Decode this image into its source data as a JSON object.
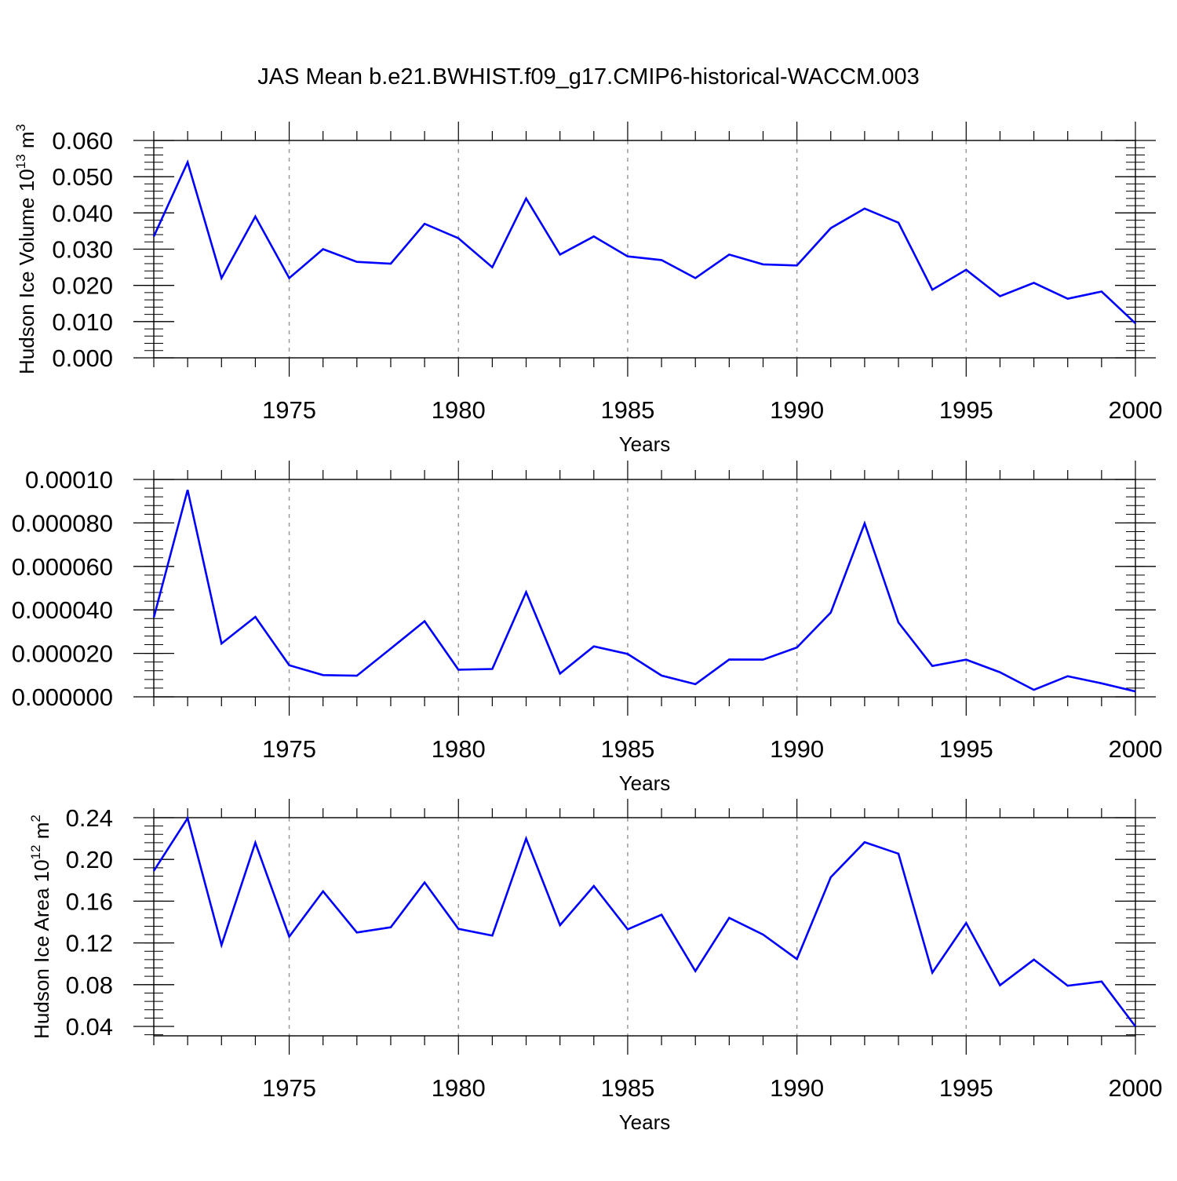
{
  "figure": {
    "title": "JAS Mean b.e21.BWHIST.f09_g17.CMIP6-historical-WACCM.003",
    "line_color": "#0000ff"
  },
  "chart_data": [
    {
      "type": "line",
      "xlabel": "Years",
      "ylabel": "Hudson Ice Volume 10",
      "ylabel_exp": "13",
      "ylabel_unit": " m",
      "ylabel_unit_exp": "3",
      "xlim": [
        1971,
        2000
      ],
      "ylim": [
        0.0,
        0.06
      ],
      "yticks": [
        0.0,
        0.01,
        0.02,
        0.03,
        0.04,
        0.05,
        0.06
      ],
      "ytick_labels": [
        "0.000",
        "0.010",
        "0.020",
        "0.030",
        "0.040",
        "0.050",
        "0.060"
      ],
      "xticks": [
        1975,
        1980,
        1985,
        1990,
        1995,
        2000
      ],
      "xtick_labels": [
        "1975",
        "1980",
        "1985",
        "1990",
        "1995",
        "2000"
      ],
      "grid": "vertical-dashed-at-major-x",
      "x": [
        1971,
        1972,
        1973,
        1974,
        1975,
        1976,
        1977,
        1978,
        1979,
        1980,
        1981,
        1982,
        1983,
        1984,
        1985,
        1986,
        1987,
        1988,
        1989,
        1990,
        1991,
        1992,
        1993,
        1994,
        1995,
        1996,
        1997,
        1998,
        1999,
        2000
      ],
      "values": [
        0.0335,
        0.054,
        0.022,
        0.039,
        0.022,
        0.03,
        0.0265,
        0.026,
        0.037,
        0.033,
        0.025,
        0.044,
        0.0285,
        0.0335,
        0.028,
        0.027,
        0.022,
        0.0285,
        0.0258,
        0.0255,
        0.0358,
        0.0412,
        0.0373,
        0.0188,
        0.0243,
        0.017,
        0.0207,
        0.0163,
        0.0183,
        0.0095
      ]
    },
    {
      "type": "line",
      "xlabel": "Years",
      "ylabel": "",
      "xlim": [
        1971,
        2000
      ],
      "ylim": [
        0.0,
        0.0001
      ],
      "yticks": [
        0.0,
        2e-05,
        4e-05,
        6e-05,
        8e-05,
        0.0001
      ],
      "ytick_labels": [
        "0.000000",
        "0.000020",
        "0.000040",
        "0.000060",
        "0.000080",
        "0.00010"
      ],
      "xticks": [
        1975,
        1980,
        1985,
        1990,
        1995,
        2000
      ],
      "xtick_labels": [
        "1975",
        "1980",
        "1985",
        "1990",
        "1995",
        "2000"
      ],
      "grid": "vertical-dashed-at-major-x",
      "x": [
        1971,
        1972,
        1973,
        1974,
        1975,
        1976,
        1977,
        1978,
        1979,
        1980,
        1981,
        1982,
        1983,
        1984,
        1985,
        1986,
        1987,
        1988,
        1989,
        1990,
        1991,
        1992,
        1993,
        1994,
        1995,
        1996,
        1997,
        1998,
        1999,
        2000
      ],
      "values": [
        3.65e-05,
        9.52e-05,
        2.45e-05,
        3.68e-05,
        1.45e-05,
        1e-05,
        9.7e-06,
        2.22e-05,
        3.48e-05,
        1.25e-05,
        1.28e-05,
        4.82e-05,
        1.07e-05,
        2.32e-05,
        1.97e-05,
        9.8e-06,
        5.8e-06,
        1.72e-05,
        1.71e-05,
        2.27e-05,
        3.88e-05,
        7.98e-05,
        3.42e-05,
        1.42e-05,
        1.71e-05,
        1.13e-05,
        3.2e-06,
        9.5e-06,
        6.2e-06,
        2.5e-06
      ]
    },
    {
      "type": "line",
      "xlabel": "Years",
      "ylabel": "Hudson Ice Area 10",
      "ylabel_exp": "12",
      "ylabel_unit": " m",
      "ylabel_unit_exp": "2",
      "xlim": [
        1971,
        2000
      ],
      "ylim": [
        0.031,
        0.24
      ],
      "yticks": [
        0.04,
        0.08,
        0.12,
        0.16,
        0.2,
        0.24
      ],
      "ytick_labels": [
        "0.04",
        "0.08",
        "0.12",
        "0.16",
        "0.20",
        "0.24"
      ],
      "xticks": [
        1975,
        1980,
        1985,
        1990,
        1995,
        2000
      ],
      "xtick_labels": [
        "1975",
        "1980",
        "1985",
        "1990",
        "1995",
        "2000"
      ],
      "grid": "vertical-dashed-at-major-x",
      "x": [
        1971,
        1972,
        1973,
        1974,
        1975,
        1976,
        1977,
        1978,
        1979,
        1980,
        1981,
        1982,
        1983,
        1984,
        1985,
        1986,
        1987,
        1988,
        1989,
        1990,
        1991,
        1992,
        1993,
        1994,
        1995,
        1996,
        1997,
        1998,
        1999,
        2000
      ],
      "values": [
        0.189,
        0.2395,
        0.118,
        0.216,
        0.126,
        0.1695,
        0.13,
        0.135,
        0.178,
        0.1335,
        0.127,
        0.22,
        0.137,
        0.1745,
        0.133,
        0.147,
        0.093,
        0.144,
        0.128,
        0.1045,
        0.183,
        0.2165,
        0.2055,
        0.0915,
        0.139,
        0.0795,
        0.104,
        0.079,
        0.083,
        0.04
      ]
    }
  ]
}
